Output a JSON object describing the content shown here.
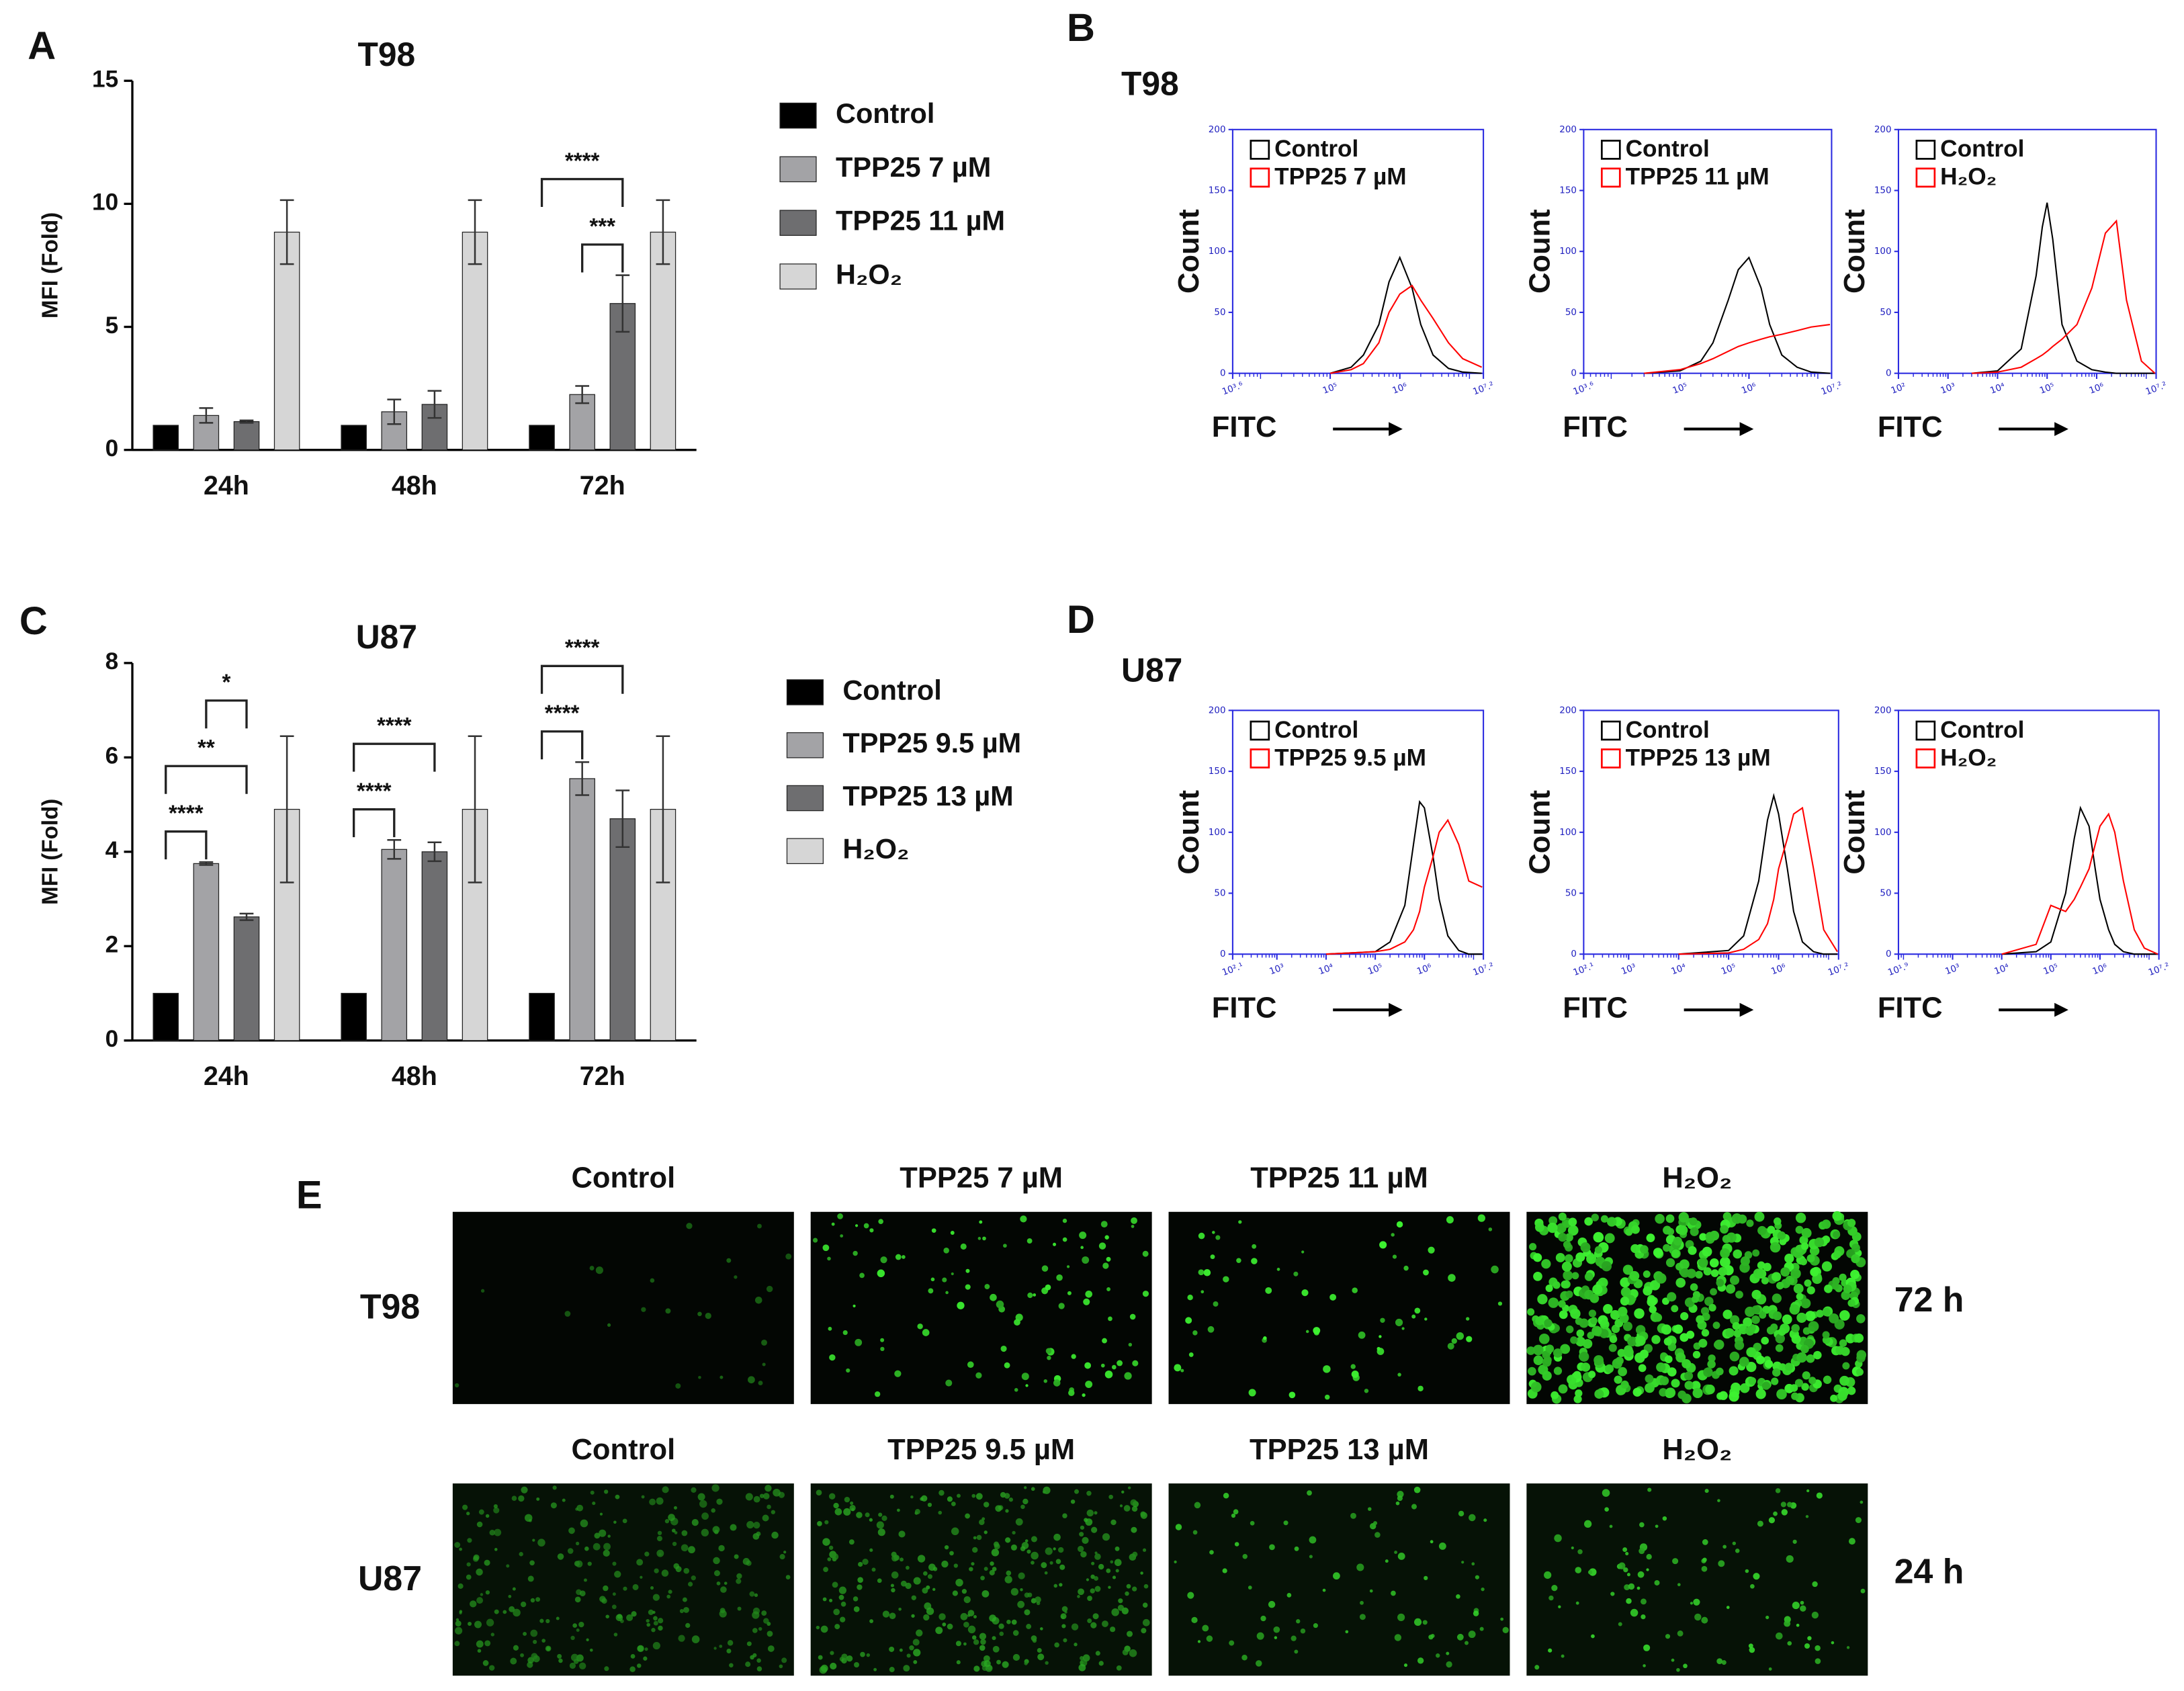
{
  "panel_labels": [
    "A",
    "B",
    "C",
    "D",
    "E"
  ],
  "histogram_groups": [
    {
      "title": "T98"
    },
    {
      "title": "U87"
    }
  ],
  "chart_data": [
    {
      "type": "bar",
      "title": "T98",
      "y_label": "MFI (Fold)",
      "categories": [
        "24h",
        "48h",
        "72h"
      ],
      "ylim": [
        0,
        15
      ],
      "yticks": [
        0,
        5,
        10,
        15
      ],
      "series": [
        {
          "name": "Control",
          "color": "#000000",
          "values": [
            1,
            1,
            1
          ],
          "errors": [
            0,
            0,
            0
          ]
        },
        {
          "name": "TPP25 7 µM",
          "color": "#a3a3a6",
          "values": [
            1.4,
            1.55,
            2.25
          ],
          "errors": [
            0.3,
            0.5,
            0.35
          ]
        },
        {
          "name": "TPP25 11 µM",
          "color": "#6e6e70",
          "values": [
            1.15,
            1.85,
            5.95
          ],
          "errors": [
            0.05,
            0.55,
            1.15
          ]
        },
        {
          "name": "H₂O₂",
          "color": "#d6d6d6",
          "values": [
            8.85,
            8.85,
            8.85
          ],
          "errors": [
            1.3,
            1.3,
            1.3
          ]
        }
      ],
      "brackets": [
        {
          "label": "***",
          "category": 2,
          "series": [
            1,
            2
          ]
        },
        {
          "label": "****",
          "category": 2,
          "series": [
            0,
            2
          ]
        }
      ]
    },
    {
      "type": "line",
      "x_scale": "log",
      "x_label": "FITC",
      "y_label": "Count",
      "xlim": [
        3981,
        15848932
      ],
      "xticks": [
        {
          "value": 3981,
          "label": "10³.⁶"
        },
        {
          "value": 100000,
          "label": "10⁵"
        },
        {
          "value": 1000000,
          "label": "10⁶"
        },
        {
          "value": 15848932,
          "label": "10⁷.²"
        }
      ],
      "ylim": [
        0,
        200
      ],
      "yticks": [
        0,
        50,
        100,
        150,
        200
      ],
      "x": [
        100000,
        200000,
        300000,
        500000,
        700000,
        1000000,
        1500000,
        2000000,
        3000000,
        5000000,
        8000000,
        15000000
      ],
      "series": [
        {
          "name": "Control",
          "color": "#000000",
          "values": [
            0,
            5,
            15,
            40,
            75,
            95,
            70,
            40,
            15,
            4,
            1,
            0
          ]
        },
        {
          "name": "TPP25 7 µM",
          "color": "#ff0000",
          "values": [
            0,
            3,
            8,
            25,
            50,
            65,
            72,
            60,
            45,
            25,
            12,
            5
          ]
        }
      ]
    },
    {
      "type": "line",
      "x_scale": "log",
      "x_label": "FITC",
      "y_label": "Count",
      "xlim": [
        3981,
        15848932
      ],
      "xticks": [
        {
          "value": 3981,
          "label": "10³.⁶"
        },
        {
          "value": 100000,
          "label": "10⁵"
        },
        {
          "value": 1000000,
          "label": "10⁶"
        },
        {
          "value": 15848932,
          "label": "10⁷.²"
        }
      ],
      "ylim": [
        0,
        200
      ],
      "yticks": [
        0,
        50,
        100,
        150,
        200
      ],
      "x": [
        30000,
        100000,
        200000,
        300000,
        500000,
        700000,
        1000000,
        1500000,
        2000000,
        3000000,
        5000000,
        8000000,
        15000000
      ],
      "series": [
        {
          "name": "Control",
          "color": "#000000",
          "values": [
            0,
            2,
            10,
            25,
            60,
            85,
            95,
            70,
            40,
            15,
            5,
            1,
            0
          ]
        },
        {
          "name": "TPP25 11 µM",
          "color": "#ff0000",
          "values": [
            0,
            3,
            8,
            12,
            18,
            22,
            25,
            28,
            30,
            32,
            35,
            38,
            40
          ]
        }
      ]
    },
    {
      "type": "line",
      "x_scale": "log",
      "x_label": "FITC",
      "y_label": "Count",
      "xlim": [
        100,
        15848932
      ],
      "xticks": [
        {
          "value": 100,
          "label": "10²"
        },
        {
          "value": 1000,
          "label": "10³"
        },
        {
          "value": 10000,
          "label": "10⁴"
        },
        {
          "value": 100000,
          "label": "10⁵"
        },
        {
          "value": 1000000,
          "label": "10⁶"
        },
        {
          "value": 15848932,
          "label": "10⁷.²"
        }
      ],
      "ylim": [
        0,
        200
      ],
      "yticks": [
        0,
        50,
        100,
        150,
        200
      ],
      "x": [
        3000,
        10000,
        30000,
        60000,
        80000,
        100000,
        130000,
        200000,
        400000,
        800000,
        1500000,
        2500000,
        4000000,
        8000000,
        15000000
      ],
      "series": [
        {
          "name": "Control",
          "color": "#000000",
          "values": [
            0,
            2,
            20,
            80,
            120,
            140,
            110,
            40,
            10,
            3,
            1,
            0,
            0,
            0,
            0
          ]
        },
        {
          "name": "H₂O₂",
          "color": "#ff0000",
          "values": [
            0,
            1,
            5,
            12,
            15,
            18,
            22,
            28,
            40,
            70,
            115,
            125,
            60,
            10,
            0
          ]
        }
      ]
    },
    {
      "type": "bar",
      "title": "U87",
      "y_label": "MFI (Fold)",
      "categories": [
        "24h",
        "48h",
        "72h"
      ],
      "ylim": [
        0,
        8
      ],
      "yticks": [
        0,
        2,
        4,
        6,
        8
      ],
      "series": [
        {
          "name": "Control",
          "color": "#000000",
          "values": [
            1,
            1,
            1
          ],
          "errors": [
            0,
            0,
            0
          ]
        },
        {
          "name": "TPP25 9.5 µM",
          "color": "#a3a3a6",
          "values": [
            3.75,
            4.05,
            5.55
          ],
          "errors": [
            0.03,
            0.2,
            0.35
          ]
        },
        {
          "name": "TPP25 13 µM",
          "color": "#6e6e70",
          "values": [
            2.62,
            4.0,
            4.7
          ],
          "errors": [
            0.07,
            0.2,
            0.6
          ]
        },
        {
          "name": "H₂O₂",
          "color": "#d6d6d6",
          "values": [
            4.9,
            4.9,
            4.9
          ],
          "errors": [
            1.55,
            1.55,
            1.55
          ]
        }
      ],
      "brackets": [
        {
          "label": "****",
          "category": 0,
          "series": [
            0,
            1
          ]
        },
        {
          "label": "**",
          "category": 0,
          "series": [
            0,
            2
          ]
        },
        {
          "label": "*",
          "category": 0,
          "series": [
            1,
            2
          ]
        },
        {
          "label": "****",
          "category": 1,
          "series": [
            0,
            1
          ]
        },
        {
          "label": "****",
          "category": 1,
          "series": [
            0,
            2
          ]
        },
        {
          "label": "****",
          "category": 2,
          "series": [
            0,
            1
          ]
        },
        {
          "label": "****",
          "category": 2,
          "series": [
            0,
            2
          ]
        }
      ]
    },
    {
      "type": "line",
      "x_scale": "log",
      "x_label": "FITC",
      "y_label": "Count",
      "xlim": [
        126,
        15848932
      ],
      "xticks": [
        {
          "value": 126,
          "label": "10².¹"
        },
        {
          "value": 1000,
          "label": "10³"
        },
        {
          "value": 10000,
          "label": "10⁴"
        },
        {
          "value": 100000,
          "label": "10⁵"
        },
        {
          "value": 1000000,
          "label": "10⁶"
        },
        {
          "value": 15848932,
          "label": "10⁷.²"
        }
      ],
      "ylim": [
        0,
        200
      ],
      "yticks": [
        0,
        50,
        100,
        150,
        200
      ],
      "x": [
        10000,
        100000,
        200000,
        400000,
        600000,
        800000,
        1000000,
        1500000,
        2000000,
        3000000,
        5000000,
        8000000,
        15000000
      ],
      "series": [
        {
          "name": "Control",
          "color": "#000000",
          "values": [
            0,
            2,
            10,
            40,
            90,
            125,
            120,
            80,
            45,
            15,
            3,
            0,
            0
          ]
        },
        {
          "name": "TPP25 9.5 µM",
          "color": "#ff0000",
          "values": [
            0,
            2,
            4,
            10,
            20,
            35,
            55,
            80,
            100,
            110,
            90,
            60,
            55
          ]
        }
      ]
    },
    {
      "type": "line",
      "x_scale": "log",
      "x_label": "FITC",
      "y_label": "Count",
      "xlim": [
        126,
        15848932
      ],
      "xticks": [
        {
          "value": 126,
          "label": "10².¹"
        },
        {
          "value": 1000,
          "label": "10³"
        },
        {
          "value": 10000,
          "label": "10⁴"
        },
        {
          "value": 100000,
          "label": "10⁵"
        },
        {
          "value": 1000000,
          "label": "10⁶"
        },
        {
          "value": 15848932,
          "label": "10⁷.²"
        }
      ],
      "ylim": [
        0,
        200
      ],
      "yticks": [
        0,
        50,
        100,
        150,
        200
      ],
      "x": [
        10000,
        100000,
        200000,
        400000,
        600000,
        800000,
        1000000,
        1500000,
        2000000,
        3000000,
        5000000,
        8000000,
        15000000
      ],
      "series": [
        {
          "name": "Control",
          "color": "#000000",
          "values": [
            0,
            3,
            15,
            60,
            110,
            130,
            115,
            70,
            35,
            10,
            2,
            0,
            0
          ]
        },
        {
          "name": "TPP25 13 µM",
          "color": "#ff0000",
          "values": [
            0,
            1,
            4,
            12,
            25,
            45,
            70,
            95,
            115,
            120,
            70,
            20,
            2
          ]
        }
      ]
    },
    {
      "type": "line",
      "x_scale": "log",
      "x_label": "FITC",
      "y_label": "Count",
      "xlim": [
        79,
        15848932
      ],
      "xticks": [
        {
          "value": 79,
          "label": "10¹.⁹"
        },
        {
          "value": 1000,
          "label": "10³"
        },
        {
          "value": 10000,
          "label": "10⁴"
        },
        {
          "value": 100000,
          "label": "10⁵"
        },
        {
          "value": 1000000,
          "label": "10⁶"
        },
        {
          "value": 15848932,
          "label": "10⁷.²"
        }
      ],
      "ylim": [
        0,
        200
      ],
      "yticks": [
        0,
        50,
        100,
        150,
        200
      ],
      "x": [
        10000,
        50000,
        100000,
        200000,
        300000,
        400000,
        600000,
        800000,
        1000000,
        1500000,
        2000000,
        3000000,
        5000000,
        8000000,
        15000000
      ],
      "series": [
        {
          "name": "Control",
          "color": "#000000",
          "values": [
            0,
            2,
            10,
            50,
            95,
            120,
            105,
            70,
            45,
            20,
            8,
            2,
            0,
            0,
            0
          ]
        },
        {
          "name": "H₂O₂",
          "color": "#ff0000",
          "values": [
            0,
            8,
            40,
            35,
            45,
            55,
            70,
            90,
            105,
            115,
            100,
            60,
            20,
            5,
            0
          ]
        }
      ]
    }
  ],
  "micrographs": {
    "rows": [
      {
        "cell_line": "T98",
        "time": "72 h",
        "columns": [
          "Control",
          "TPP25 7 µM",
          "TPP25 11 µM",
          "H₂O₂"
        ]
      },
      {
        "cell_line": "U87",
        "time": "24 h",
        "columns": [
          "Control",
          "TPP25 9.5 µM",
          "TPP25 13 µM",
          "H₂O₂"
        ]
      }
    ]
  }
}
